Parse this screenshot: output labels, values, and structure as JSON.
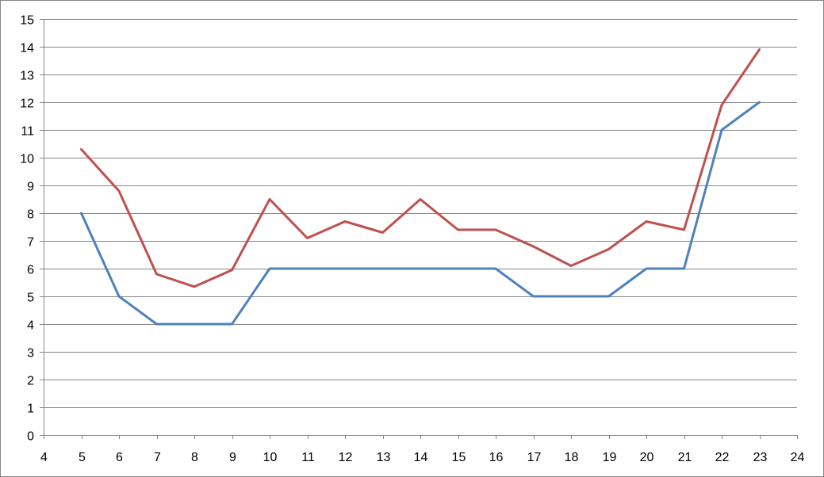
{
  "chart_data": {
    "type": "line",
    "title": "",
    "xlabel": "",
    "ylabel": "",
    "xlim": [
      4,
      24
    ],
    "ylim": [
      0,
      15
    ],
    "x_ticks": [
      4,
      5,
      6,
      7,
      8,
      9,
      10,
      11,
      12,
      13,
      14,
      15,
      16,
      17,
      18,
      19,
      20,
      21,
      22,
      23,
      24
    ],
    "y_ticks": [
      0,
      1,
      2,
      3,
      4,
      5,
      6,
      7,
      8,
      9,
      10,
      11,
      12,
      13,
      14,
      15
    ],
    "grid": "horizontal",
    "legend": "none",
    "x": [
      5,
      6,
      7,
      8,
      9,
      10,
      11,
      12,
      13,
      14,
      15,
      16,
      17,
      18,
      19,
      20,
      21,
      22,
      23
    ],
    "series": [
      {
        "color": "#4F81BD",
        "values": [
          8,
          5,
          4,
          4,
          4,
          6,
          6,
          6,
          6,
          6,
          6,
          6,
          5,
          5,
          5,
          6,
          6,
          11,
          12
        ]
      },
      {
        "color": "#C0504D",
        "values": [
          10.3,
          8.8,
          5.8,
          5.35,
          5.95,
          8.5,
          7.1,
          7.7,
          7.3,
          8.5,
          7.4,
          7.4,
          6.8,
          6.1,
          6.7,
          7.7,
          7.4,
          11.9,
          13.9
        ]
      }
    ]
  }
}
